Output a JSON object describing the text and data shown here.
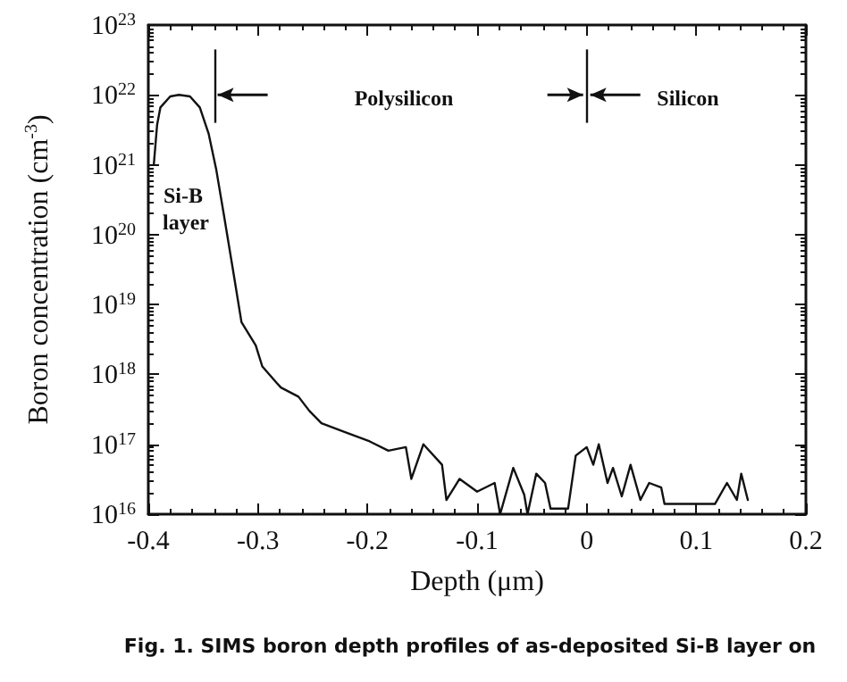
{
  "chart_data": {
    "type": "line",
    "xlabel": "Depth (μm)",
    "ylabel": "Boron concentration (cm$^{-3}$)",
    "x": [
      -0.395,
      -0.392,
      -0.389,
      -0.38,
      -0.372,
      -0.362,
      -0.353,
      -0.345,
      -0.338,
      -0.331,
      -0.323,
      -0.315,
      -0.302,
      -0.296,
      -0.283,
      -0.279,
      -0.263,
      -0.253,
      -0.242,
      -0.221,
      -0.198,
      -0.181,
      -0.165,
      -0.16,
      -0.149,
      -0.132,
      -0.128,
      -0.116,
      -0.1,
      -0.084,
      -0.079,
      -0.067,
      -0.057,
      -0.054,
      -0.046,
      -0.038,
      -0.033,
      -0.017,
      -0.01,
      0.0,
      0.006,
      0.011,
      0.019,
      0.024,
      0.032,
      0.04,
      0.049,
      0.057,
      0.068,
      0.071,
      0.098,
      0.117,
      0.128,
      0.137,
      0.141,
      0.147
    ],
    "series": [
      {
        "color": "#111111",
        "values": [
          1e+21,
          3.7e+21,
          6.6e+21,
          9.5e+21,
          1e+22,
          9.5e+21,
          6.6e+21,
          2.8e+21,
          8.5e+20,
          1.9e+20,
          3.3e+19,
          5.6e+18,
          2.6e+18,
          1.3e+18,
          7.6e+17,
          6.5e+17,
          4.8e+17,
          3e+17,
          2e+17,
          1.5e+17,
          1.1e+17,
          8.1e+16,
          9.1e+16,
          3.2e+16,
          1e+17,
          5.1e+16,
          1.6e+16,
          3.2e+16,
          2.1e+16,
          2.8e+16,
          1e+16,
          4.6e+16,
          1.9e+16,
          1e+16,
          3.8e+16,
          2.8e+16,
          1.2e+16,
          1.2e+16,
          6.9e+16,
          9.1e+16,
          5.1e+16,
          1e+17,
          2.8e+16,
          4.6e+16,
          1.8e+16,
          5.1e+16,
          1.6e+16,
          2.8e+16,
          2.4e+16,
          1.4e+16,
          1.4e+16,
          1.4e+16,
          2.8e+16,
          1.6e+16,
          3.8e+16,
          1.6e+16
        ]
      }
    ],
    "xlim": [
      -0.4,
      0.2
    ],
    "xticks": [
      -0.4,
      -0.3,
      -0.2,
      -0.1,
      0,
      0.1,
      0.2
    ],
    "ylim": [
      1e+16,
      1e+23
    ],
    "yticks": [
      {
        "value": 1e+16,
        "label": "10$^{16}$"
      },
      {
        "value": 1e+17,
        "label": "10$^{17}$"
      },
      {
        "value": 1e+18,
        "label": "10$^{18}$"
      },
      {
        "value": 1e+19,
        "label": "10$^{19}$"
      },
      {
        "value": 1e+20,
        "label": "10$^{20}$"
      },
      {
        "value": 1e+21,
        "label": "10$^{21}$"
      },
      {
        "value": 1e+22,
        "label": "10$^{22}$"
      },
      {
        "value": 1e+23,
        "label": "10$^{23}$"
      }
    ],
    "log": "y",
    "grid": false,
    "marker": "none",
    "line_style": "solid",
    "ref_lines": [
      {
        "axis": "x",
        "value": -0.34
      },
      {
        "axis": "x",
        "value": 0
      }
    ],
    "annotations": [
      "Polysilicon",
      "Silicon",
      "Si-B layer",
      "Fig. 1. SIMS boron depth profiles of as-deposited Si-B layer on"
    ]
  }
}
